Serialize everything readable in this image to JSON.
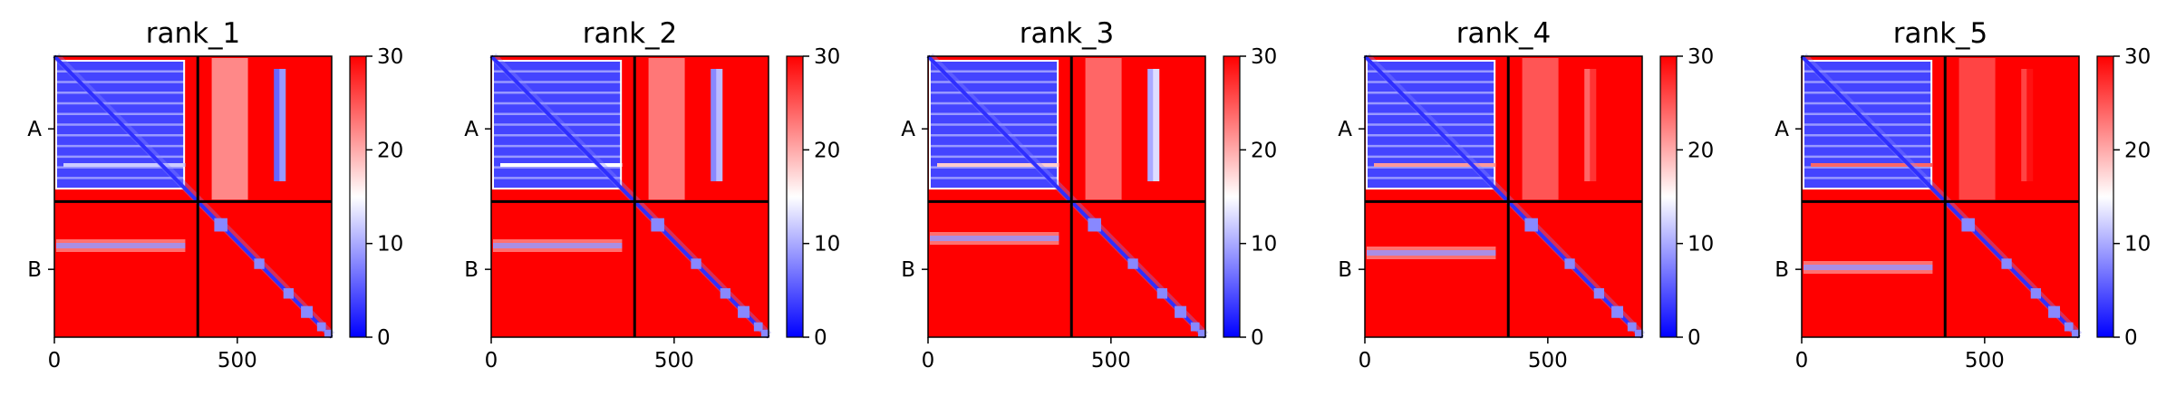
{
  "chart_data": [
    {
      "type": "heatmap",
      "title": "rank_1",
      "xticks": [
        "0",
        "500"
      ],
      "xtick_values": [
        0,
        500
      ],
      "yticks": [
        "A",
        "B"
      ],
      "xlim": [
        0,
        758
      ],
      "chain_boundary": 392,
      "colorbar": {
        "ticks": [
          "0",
          "10",
          "20",
          "30"
        ],
        "tick_values": [
          0,
          10,
          20,
          30
        ],
        "range": [
          0,
          30
        ],
        "colors": [
          "#0000ff",
          "#ffffff",
          "#ff0000"
        ]
      }
    },
    {
      "type": "heatmap",
      "title": "rank_2",
      "xticks": [
        "0",
        "500"
      ],
      "xtick_values": [
        0,
        500
      ],
      "yticks": [
        "A",
        "B"
      ],
      "xlim": [
        0,
        758
      ],
      "chain_boundary": 392,
      "colorbar": {
        "ticks": [
          "0",
          "10",
          "20",
          "30"
        ],
        "tick_values": [
          0,
          10,
          20,
          30
        ],
        "range": [
          0,
          30
        ],
        "colors": [
          "#0000ff",
          "#ffffff",
          "#ff0000"
        ]
      }
    },
    {
      "type": "heatmap",
      "title": "rank_3",
      "xticks": [
        "0",
        "500"
      ],
      "xtick_values": [
        0,
        500
      ],
      "yticks": [
        "A",
        "B"
      ],
      "xlim": [
        0,
        758
      ],
      "chain_boundary": 392,
      "colorbar": {
        "ticks": [
          "0",
          "10",
          "20",
          "30"
        ],
        "tick_values": [
          0,
          10,
          20,
          30
        ],
        "range": [
          0,
          30
        ],
        "colors": [
          "#0000ff",
          "#ffffff",
          "#ff0000"
        ]
      }
    },
    {
      "type": "heatmap",
      "title": "rank_4",
      "xticks": [
        "0",
        "500"
      ],
      "xtick_values": [
        0,
        500
      ],
      "yticks": [
        "A",
        "B"
      ],
      "xlim": [
        0,
        758
      ],
      "chain_boundary": 392,
      "colorbar": {
        "ticks": [
          "0",
          "10",
          "20",
          "30"
        ],
        "tick_values": [
          0,
          10,
          20,
          30
        ],
        "range": [
          0,
          30
        ],
        "colors": [
          "#0000ff",
          "#ffffff",
          "#ff0000"
        ]
      }
    },
    {
      "type": "heatmap",
      "title": "rank_5",
      "xticks": [
        "0",
        "500"
      ],
      "xtick_values": [
        0,
        500
      ],
      "yticks": [
        "A",
        "B"
      ],
      "xlim": [
        0,
        758
      ],
      "chain_boundary": 392,
      "colorbar": {
        "ticks": [
          "0",
          "10",
          "20",
          "30"
        ],
        "tick_values": [
          0,
          10,
          20,
          30
        ],
        "range": [
          0,
          30
        ],
        "colors": [
          "#0000ff",
          "#ffffff",
          "#ff0000"
        ]
      }
    }
  ]
}
